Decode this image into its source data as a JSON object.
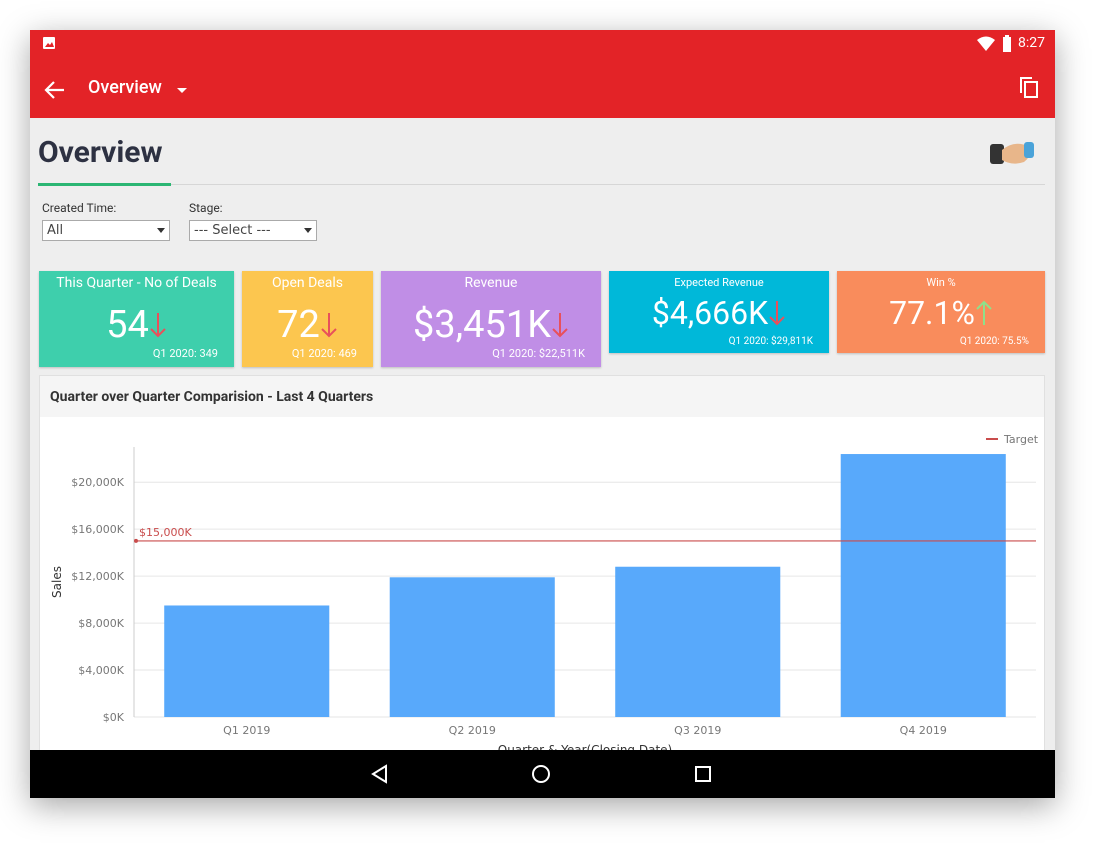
{
  "status_bar": {
    "time": "8:27"
  },
  "app_bar": {
    "title": "Overview"
  },
  "page": {
    "title": "Overview"
  },
  "filters": [
    {
      "label": "Created Time:",
      "value": "All"
    },
    {
      "label": "Stage:",
      "value": "--- Select ---"
    }
  ],
  "kpis": [
    {
      "title": "This Quarter - No of Deals",
      "value": "54",
      "comparison": "Q1 2020: 349",
      "trend": "down",
      "color": "#3ecfac"
    },
    {
      "title": "Open Deals",
      "value": "72",
      "comparison": "Q1 2020: 469",
      "trend": "down",
      "color": "#fcc64f"
    },
    {
      "title": "Revenue",
      "value": "$3,451K",
      "comparison": "Q1 2020: $22,511K",
      "trend": "down",
      "color": "#c08ee6"
    },
    {
      "title": "Expected Revenue",
      "value": "$4,666K",
      "comparison": "Q1 2020: $29,811K",
      "trend": "down",
      "color": "#00b8d9"
    },
    {
      "title": "Win %",
      "value": "77.1%",
      "comparison": "Q1 2020: 75.5%",
      "trend": "up",
      "color": "#f98c5c"
    }
  ],
  "chart_data": {
    "type": "bar",
    "title": "Quarter over Quarter Comparision - Last 4 Quarters",
    "x_label": "Quarter & Year(Closing Date)",
    "y_label": "Sales",
    "categories": [
      "Q1 2019",
      "Q2 2019",
      "Q3 2019",
      "Q4 2019"
    ],
    "values": [
      9500,
      11900,
      12800,
      22400
    ],
    "color": "#58a9fb",
    "ylim": [
      0,
      23000
    ],
    "yticks": [
      {
        "value": 0,
        "label": "$0K"
      },
      {
        "value": 4000,
        "label": "$4,000K"
      },
      {
        "value": 8000,
        "label": "$8,000K"
      },
      {
        "value": 12000,
        "label": "$12,000K"
      },
      {
        "value": 16000,
        "label": "$16,000K"
      },
      {
        "value": 20000,
        "label": "$20,000K"
      }
    ],
    "grid": true,
    "target": {
      "name": "Target",
      "value": 15000,
      "label": "$15,000K",
      "color": "#c94c4c"
    },
    "legend": "top-right"
  }
}
